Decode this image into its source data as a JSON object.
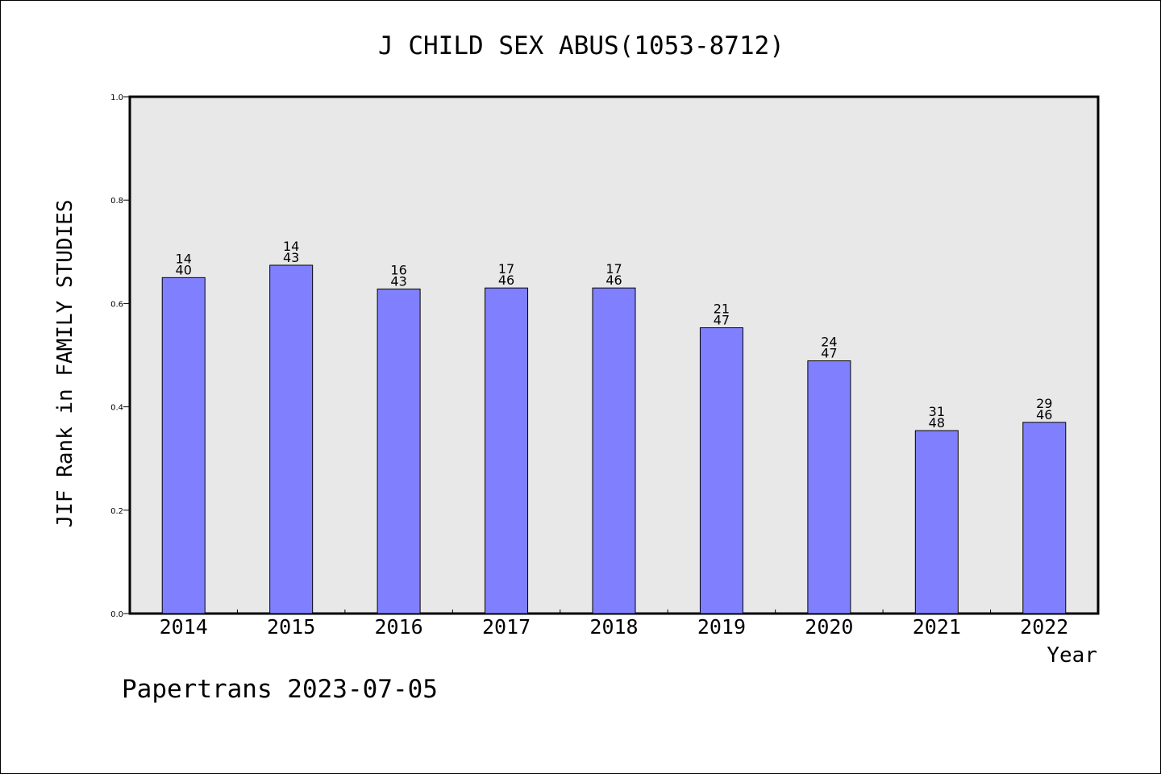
{
  "chart_data": {
    "type": "bar",
    "title": "J CHILD SEX ABUS(1053-8712)",
    "xlabel": "Year",
    "ylabel": "JIF Rank in FAMILY STUDIES",
    "ylim": [
      0,
      1.0
    ],
    "yticks": [
      "0.0",
      "0.2",
      "0.4",
      "0.6",
      "0.8",
      "1.0"
    ],
    "categories": [
      "2014",
      "2015",
      "2016",
      "2017",
      "2018",
      "2019",
      "2020",
      "2021",
      "2022"
    ],
    "values": [
      0.65,
      0.674,
      0.628,
      0.63,
      0.63,
      0.553,
      0.489,
      0.354,
      0.37
    ],
    "labels": [
      [
        "14",
        "40"
      ],
      [
        "14",
        "43"
      ],
      [
        "16",
        "43"
      ],
      [
        "17",
        "46"
      ],
      [
        "17",
        "46"
      ],
      [
        "21",
        "47"
      ],
      [
        "24",
        "47"
      ],
      [
        "31",
        "48"
      ],
      [
        "29",
        "46"
      ]
    ],
    "grid": false,
    "bar_color": "#8080ff",
    "plot_background": "#e8e8e8"
  },
  "footer": "Papertrans 2023-07-05"
}
